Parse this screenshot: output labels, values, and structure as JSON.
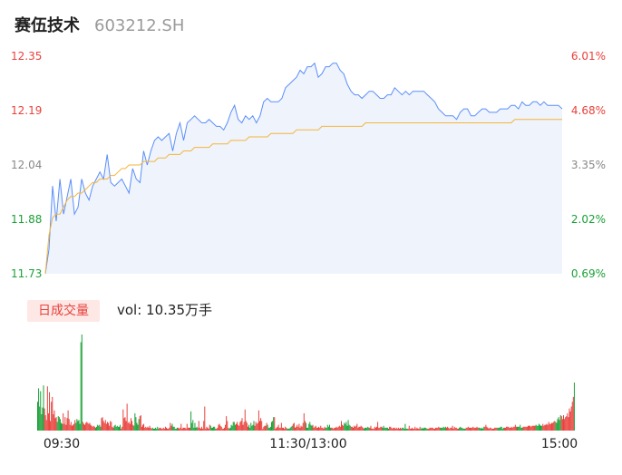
{
  "header": {
    "name": "赛伍技术",
    "code": "603212.SH"
  },
  "volume_panel": {
    "badge": "日成交量",
    "label": "vol: 10.35万手"
  },
  "colors": {
    "up": "#e8413c",
    "down": "#1aa037",
    "price_line": "#5b8ff9",
    "avg_line": "#f6b53a",
    "area_fill": "#eef3fc",
    "neutral": "#888888"
  },
  "chart_data": [
    {
      "type": "line",
      "title": "",
      "x_ticks": [
        "09:30",
        "11:30/13:00",
        "15:00"
      ],
      "y_left_ticks": [
        "12.35",
        "12.19",
        "12.04",
        "11.88",
        "11.73"
      ],
      "y_right_ticks": [
        "6.01%",
        "4.68%",
        "3.35%",
        "2.02%",
        "0.69%"
      ],
      "ylim": [
        11.73,
        12.35
      ],
      "grid": false,
      "series": [
        {
          "values": [
            11.73,
            11.8,
            11.98,
            11.88,
            12.0,
            11.9,
            11.95,
            12.0,
            11.9,
            11.92,
            12.0,
            11.96,
            11.94,
            11.98,
            12.0,
            12.02,
            12.0,
            12.07,
            11.99,
            11.98,
            11.99,
            12.0,
            11.98,
            11.96,
            12.03,
            12.0,
            11.99,
            12.08,
            12.04,
            12.08,
            12.11,
            12.12,
            12.11,
            12.12,
            12.13,
            12.08,
            12.13,
            12.16,
            12.11,
            12.16,
            12.17,
            12.18,
            12.17,
            12.16,
            12.16,
            12.17,
            12.16,
            12.15,
            12.15,
            12.14,
            12.16,
            12.19,
            12.21,
            12.17,
            12.16,
            12.18,
            12.17,
            12.18,
            12.16,
            12.18,
            12.22,
            12.23,
            12.22,
            12.22,
            12.22,
            12.23,
            12.26,
            12.27,
            12.28,
            12.29,
            12.31,
            12.3,
            12.32,
            12.32,
            12.33,
            12.29,
            12.3,
            12.32,
            12.32,
            12.33,
            12.33,
            12.31,
            12.3,
            12.27,
            12.25,
            12.24,
            12.24,
            12.23,
            12.24,
            12.25,
            12.25,
            12.24,
            12.23,
            12.23,
            12.24,
            12.24,
            12.26,
            12.25,
            12.24,
            12.25,
            12.24,
            12.25,
            12.25,
            12.25,
            12.25,
            12.24,
            12.23,
            12.22,
            12.2,
            12.19,
            12.18,
            12.18,
            12.18,
            12.17,
            12.19,
            12.2,
            12.2,
            12.18,
            12.18,
            12.19,
            12.2,
            12.2,
            12.19,
            12.19,
            12.19,
            12.2,
            12.2,
            12.2,
            12.21,
            12.21,
            12.2,
            12.22,
            12.21,
            12.21,
            12.22,
            12.22,
            12.21,
            12.22,
            12.21,
            12.21,
            12.21,
            12.21,
            12.2
          ]
        },
        {
          "values": [
            11.73,
            11.84,
            11.89,
            11.9,
            11.9,
            11.92,
            11.94,
            11.95,
            11.95,
            11.96,
            11.96,
            11.97,
            11.98,
            11.99,
            11.99,
            12.0,
            12.0,
            12.0,
            12.01,
            12.01,
            12.02,
            12.03,
            12.03,
            12.04,
            12.04,
            12.04,
            12.04,
            12.05,
            12.05,
            12.05,
            12.05,
            12.06,
            12.06,
            12.06,
            12.07,
            12.07,
            12.07,
            12.07,
            12.08,
            12.08,
            12.08,
            12.09,
            12.09,
            12.09,
            12.09,
            12.09,
            12.1,
            12.1,
            12.1,
            12.1,
            12.1,
            12.11,
            12.11,
            12.11,
            12.11,
            12.11,
            12.12,
            12.12,
            12.12,
            12.12,
            12.12,
            12.12,
            12.13,
            12.13,
            12.13,
            12.13,
            12.13,
            12.13,
            12.13,
            12.14,
            12.14,
            12.14,
            12.14,
            12.14,
            12.14,
            12.14,
            12.15,
            12.15,
            12.15,
            12.15,
            12.15,
            12.15,
            12.15,
            12.15,
            12.15,
            12.15,
            12.15,
            12.15,
            12.16,
            12.16,
            12.16,
            12.16,
            12.16,
            12.16,
            12.16,
            12.16,
            12.16,
            12.16,
            12.16,
            12.16,
            12.16,
            12.16,
            12.16,
            12.16,
            12.16,
            12.16,
            12.16,
            12.16,
            12.16,
            12.16,
            12.16,
            12.16,
            12.16,
            12.16,
            12.16,
            12.16,
            12.16,
            12.16,
            12.16,
            12.16,
            12.16,
            12.16,
            12.16,
            12.16,
            12.16,
            12.16,
            12.16,
            12.16,
            12.16,
            12.17,
            12.17,
            12.17,
            12.17,
            12.17,
            12.17,
            12.17,
            12.17,
            12.17,
            12.17,
            12.17,
            12.17,
            12.17,
            12.17
          ]
        }
      ]
    },
    {
      "type": "bar",
      "title": "",
      "values": [
        30,
        44,
        25,
        41,
        17,
        24,
        47,
        23,
        16,
        11,
        46,
        18,
        40,
        10,
        30,
        35,
        17,
        21,
        13,
        14,
        9,
        15,
        14,
        12,
        8,
        7,
        18,
        7,
        14,
        6,
        13,
        21,
        12,
        6,
        9,
        5,
        6,
        7,
        11,
        8,
        12,
        10,
        11,
        7,
        92,
        100,
        9,
        7,
        6,
        8,
        9,
        8,
        7,
        8,
        6,
        5,
        4,
        5,
        4,
        3,
        4,
        6,
        5,
        6,
        4,
        13,
        14,
        10,
        8,
        11,
        7,
        9,
        8,
        5,
        10,
        9,
        4,
        3,
        5,
        6,
        4,
        5,
        4,
        4,
        6,
        2,
        4,
        22,
        13,
        14,
        10,
        28,
        8,
        9,
        7,
        13,
        10,
        6,
        5,
        18,
        14,
        8,
        6,
        12,
        15,
        16,
        4,
        6,
        7,
        3,
        4,
        3,
        4,
        3,
        5,
        3,
        2,
        3,
        2,
        2,
        3,
        2,
        4,
        2,
        3,
        3,
        2,
        2,
        3,
        2,
        4,
        3,
        2,
        2,
        3,
        8,
        5,
        7,
        4,
        4,
        2,
        2,
        3,
        3,
        2,
        3,
        7,
        2,
        3,
        3,
        3,
        2,
        7,
        3,
        3,
        3,
        20,
        8,
        11,
        3,
        8,
        3,
        4,
        3,
        10,
        3,
        2,
        4,
        2,
        10,
        25,
        2,
        4,
        3,
        2,
        6,
        5,
        3,
        3,
        4,
        4,
        2,
        2,
        3,
        6,
        7,
        5,
        4,
        2,
        2,
        3,
        6,
        15,
        10,
        3,
        2,
        3,
        6,
        5,
        9,
        9,
        6,
        7,
        9,
        6,
        5,
        9,
        10,
        13,
        6,
        9,
        22,
        10,
        8,
        4,
        6,
        3,
        8,
        5,
        6,
        10,
        5,
        9,
        7,
        8,
        21,
        10,
        13,
        10,
        2,
        4,
        5,
        5,
        8,
        6,
        3,
        3,
        4,
        9,
        10,
        14,
        14,
        2,
        3,
        4,
        6,
        3,
        3,
        8,
        3,
        3,
        2,
        4,
        3,
        2,
        2,
        2,
        3,
        4,
        5,
        7,
        8,
        3,
        4,
        6,
        4,
        7,
        3,
        5,
        4,
        8,
        18,
        10,
        8,
        3,
        3,
        7,
        9,
        6,
        5,
        6,
        3,
        4,
        5,
        3,
        3,
        4,
        3,
        5,
        3,
        3,
        2,
        4,
        3,
        3,
        6,
        4,
        6,
        3,
        3,
        3,
        2,
        3,
        3,
        4,
        3,
        4,
        5,
        4,
        10,
        6,
        5,
        8,
        7,
        9,
        5,
        11,
        6,
        5,
        4,
        4,
        3,
        5,
        4,
        5,
        7,
        3,
        4,
        4,
        5,
        4,
        3,
        2,
        3,
        3,
        3,
        4,
        3,
        3,
        5,
        2,
        2,
        2,
        4,
        3,
        4,
        9,
        3,
        3,
        4,
        4,
        3,
        5,
        3,
        3,
        3,
        3,
        2,
        4,
        4,
        3,
        2,
        3,
        3,
        2,
        3,
        2,
        3,
        2,
        3,
        2,
        3,
        3,
        2,
        7,
        2,
        2,
        2,
        5,
        2,
        2,
        3,
        2,
        2,
        4,
        2,
        3,
        2,
        2,
        4,
        2,
        3,
        2,
        3,
        3,
        3,
        2,
        2,
        2,
        3,
        3,
        3,
        3,
        2,
        2,
        3,
        3,
        3,
        4,
        3,
        3,
        3,
        3,
        4,
        3,
        4,
        3,
        4,
        3,
        2,
        3,
        3,
        5,
        2,
        4,
        3,
        3,
        2,
        2,
        3,
        4,
        3,
        3,
        2,
        2,
        2,
        3,
        3,
        4,
        3,
        3,
        3,
        3,
        4,
        3,
        3,
        3,
        4,
        3,
        3,
        3,
        2,
        3,
        2,
        4,
        4,
        6,
        4,
        3,
        2,
        3,
        3,
        2,
        2,
        2,
        3,
        3,
        3,
        3,
        3,
        3,
        4,
        4,
        2,
        3,
        3,
        3,
        4,
        4,
        4,
        3,
        3,
        4,
        3,
        4,
        4,
        6,
        4,
        4,
        4,
        4,
        6,
        3,
        3,
        4,
        4,
        4,
        4,
        4,
        5,
        5,
        5,
        4,
        5,
        5,
        5,
        5,
        6,
        5,
        5,
        7,
        6,
        5,
        5,
        7,
        5,
        6,
        6,
        7,
        6,
        9,
        7,
        7,
        8,
        8,
        9,
        10,
        9,
        8,
        12,
        14,
        11,
        16,
        15,
        12,
        16,
        12,
        14,
        15,
        18,
        14,
        23,
        20,
        25,
        30,
        35,
        50
      ]
    }
  ]
}
